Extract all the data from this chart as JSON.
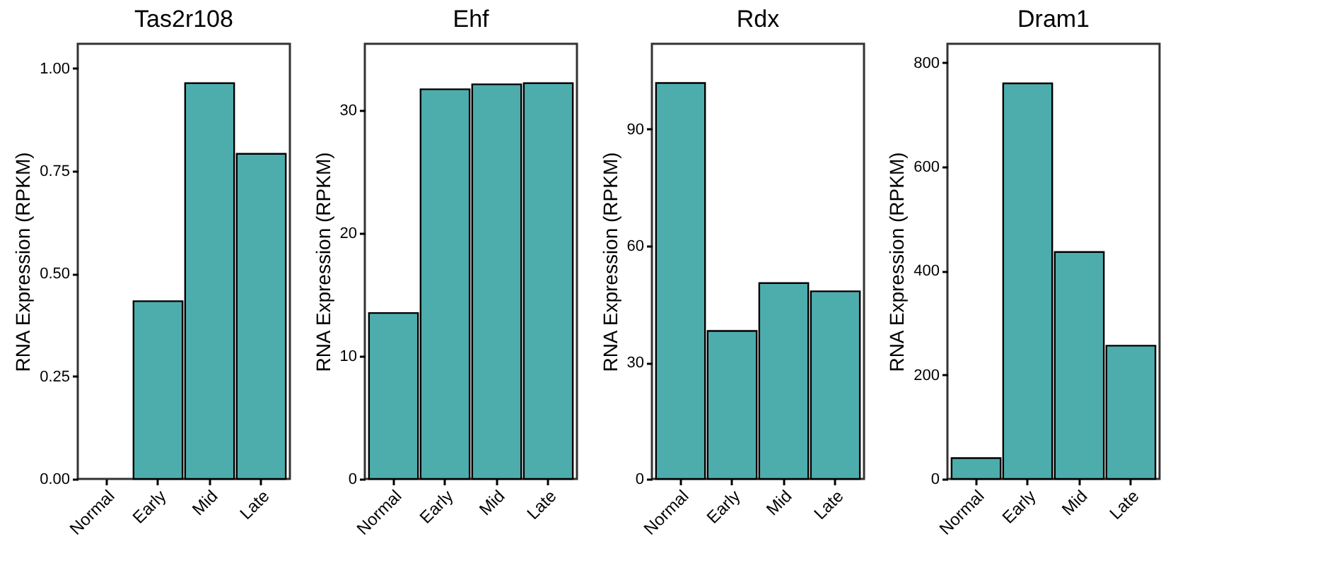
{
  "chart_data": [
    {
      "type": "bar",
      "title": "Tas2r108",
      "ylabel": "RNA Expression (RPKM)",
      "categories": [
        "Normal",
        "Early",
        "Mid",
        "Late"
      ],
      "values": [
        0,
        0.433,
        0.964,
        0.792
      ],
      "color": "#4dadad",
      "ylim": [
        0,
        1.06
      ],
      "yticks": [
        {
          "value": 0,
          "label": "0.00"
        },
        {
          "value": 0.25,
          "label": "0.25"
        },
        {
          "value": 0.5,
          "label": "0.50"
        },
        {
          "value": 0.75,
          "label": "0.75"
        },
        {
          "value": 1,
          "label": "1.00"
        }
      ]
    },
    {
      "type": "bar",
      "title": "Ehf",
      "ylabel": "RNA Expression (RPKM)",
      "categories": [
        "Normal",
        "Early",
        "Mid",
        "Late"
      ],
      "values": [
        13.5,
        31.7,
        32.1,
        32.2
      ],
      "color": "#4dadad",
      "ylim": [
        0,
        35.4
      ],
      "yticks": [
        0,
        10,
        20,
        30
      ]
    },
    {
      "type": "bar",
      "title": "Rdx",
      "ylabel": "RNA Expression (RPKM)",
      "categories": [
        "Normal",
        "Early",
        "Mid",
        "Late"
      ],
      "values": [
        101.9,
        38.1,
        50.4,
        48.3
      ],
      "color": "#4dadad",
      "ylim": [
        0,
        112
      ],
      "yticks": [
        0,
        30,
        60,
        90
      ]
    },
    {
      "type": "bar",
      "title": "Dram1",
      "ylabel": "RNA Expression (RPKM)",
      "categories": [
        "Normal",
        "Early",
        "Mid",
        "Late"
      ],
      "values": [
        40,
        760,
        436,
        256
      ],
      "color": "#4dadad",
      "ylim": [
        0,
        836
      ],
      "yticks": [
        0,
        200,
        400,
        600,
        800
      ]
    }
  ]
}
